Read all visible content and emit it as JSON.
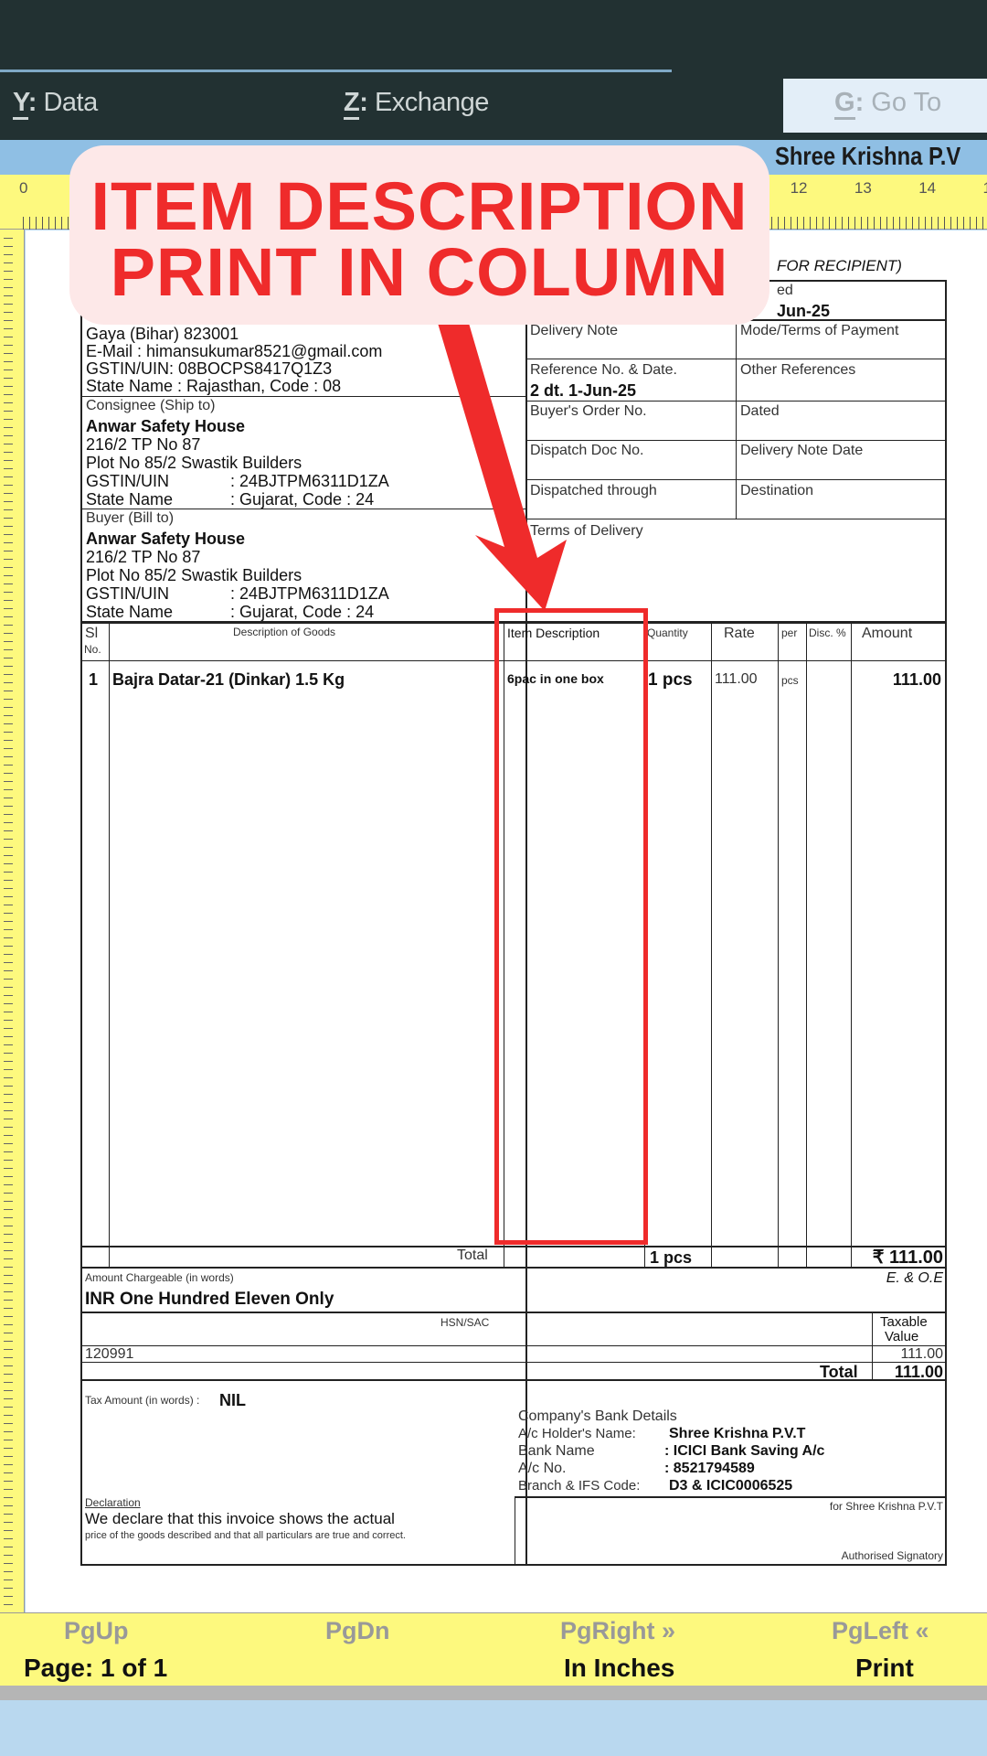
{
  "menu": {
    "data": {
      "key": "Y",
      "label": "Data"
    },
    "exchange": {
      "key": "Z",
      "label": "Exchange"
    },
    "goto": {
      "key": "G",
      "label": "Go To"
    }
  },
  "company_bar": "Shree Krishna P.V",
  "banner": {
    "line1": "ITEM DESCRIPTION",
    "line2": "PRINT IN COLUMN",
    "color": "#ef2b2b"
  },
  "invoice": {
    "copy_label": "FOR RECIPIENT)",
    "dated_fragment": "ed",
    "date_fragment": "Jun-25",
    "seller": {
      "address": "Gaya (Bihar) 823001",
      "email": "E-Mail : himansukumar8521@gmail.com",
      "gstin": "GSTIN/UIN: 08BOCPS8417Q1Z3",
      "state": "State Name :  Rajasthan, Code : 08"
    },
    "consignee": {
      "label": "Consignee (Ship to)",
      "name": "Anwar Safety House",
      "addr1": "216/2 TP No 87",
      "addr2": "Plot No 85/2 Swastik Builders",
      "gstin_label": "GSTIN/UIN",
      "gstin": ": 24BJTPM6311D1ZA",
      "state_label": "State Name",
      "state": ": Gujarat, Code : 24"
    },
    "buyer": {
      "label": "Buyer (Bill to)",
      "name": "Anwar Safety House",
      "addr1": "216/2 TP No 87",
      "addr2": "Plot No 85/2 Swastik Builders",
      "gstin_label": "GSTIN/UIN",
      "gstin": ": 24BJTPM6311D1ZA",
      "state_label": "State Name",
      "state": ": Gujarat, Code : 24"
    },
    "fields": {
      "delivery_note": "Delivery Note",
      "mode_terms": "Mode/Terms of Payment",
      "reference": "Reference No. & Date.",
      "reference_value": "2  dt. 1-Jun-25",
      "other_refs": "Other References",
      "buyers_order": "Buyer's Order No.",
      "dated": "Dated",
      "dispatch_doc": "Dispatch Doc No.",
      "delivery_note_date": "Delivery Note Date",
      "dispatched_through": "Dispatched through",
      "destination": "Destination",
      "terms_delivery": "Terms of Delivery"
    },
    "table": {
      "headers": {
        "sl": "Sl",
        "sl2": "No.",
        "desc": "Description of Goods",
        "item_desc": "Item Description",
        "qty": "Quantity",
        "rate": "Rate",
        "per": "per",
        "disc": "Disc. %",
        "amount": "Amount"
      },
      "rows": [
        {
          "sl": "1",
          "desc": "Bajra Datar-21 (Dinkar) 1.5 Kg",
          "item_desc": "6pac in one box",
          "qty": "1 pcs",
          "rate": "111.00",
          "per": "pcs",
          "disc": "",
          "amount": "111.00"
        }
      ],
      "total_label": "Total",
      "total_qty": "1 pcs",
      "total_amount": "₹ 111.00"
    },
    "amount_words_label": "Amount Chargeable (in words)",
    "eoe": "E. & O.E",
    "amount_words": "INR One Hundred Eleven Only",
    "hsn": {
      "header": "HSN/SAC",
      "taxable_header1": "Taxable",
      "taxable_header2": "Value",
      "code": "120991",
      "value": "111.00",
      "total_label": "Total",
      "total": "111.00"
    },
    "tax_words_label": "Tax Amount (in words) :",
    "tax_words": "NIL",
    "bank": {
      "title": "Company's Bank Details",
      "holder_label": "A/c Holder's Name:",
      "holder": "Shree Krishna P.V.T",
      "bank_label": "Bank Name",
      "bank": ": ICICI Bank Saving A/c",
      "acc_label": "A/c No.",
      "acc": ": 8521794589",
      "branch_label": "Branch & IFS Code:",
      "branch": "D3 & ICIC0006525"
    },
    "declaration_label": "Declaration",
    "declaration1": "We declare that this invoice shows the actual",
    "declaration2": "price of the goods described and that all particulars are true and correct.",
    "for_company": "for Shree Krishna P.V.T",
    "signatory": "Authorised Signatory"
  },
  "footer": {
    "pgup": "PgUp",
    "pgdn": "PgDn",
    "pgright": "PgRight »",
    "pgleft": "PgLeft «",
    "page": "Page: 1 of 1",
    "units": "In Inches",
    "print": "Print"
  }
}
